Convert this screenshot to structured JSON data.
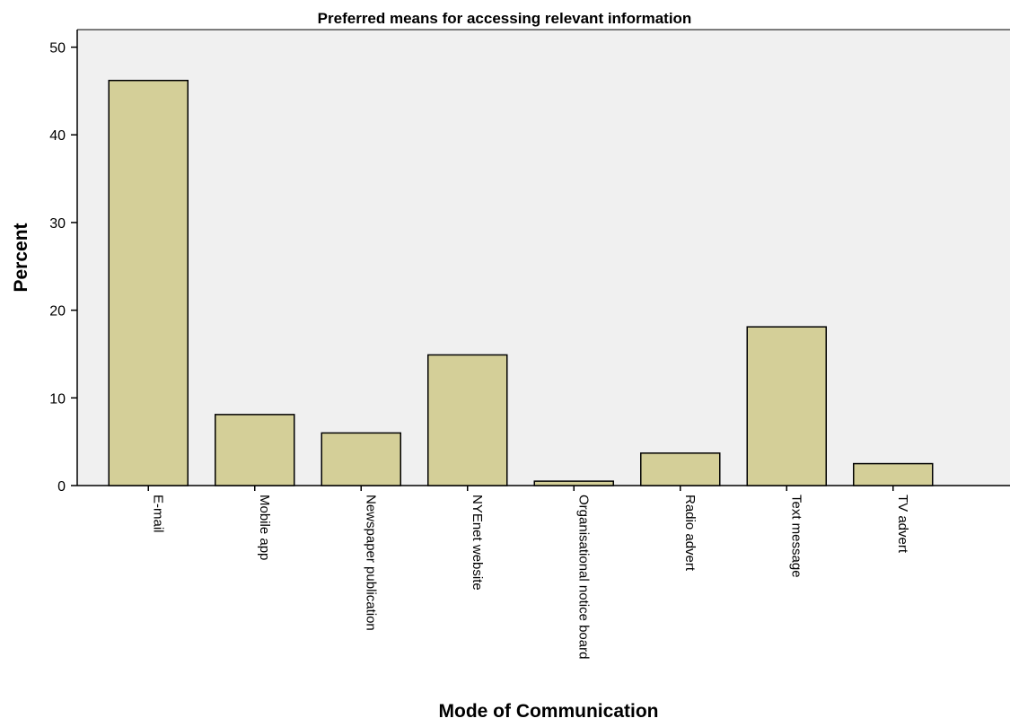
{
  "chart_data": {
    "type": "bar",
    "title": "Preferred means for accessing relevant information",
    "xlabel": "Mode of Communication",
    "ylabel": "Percent",
    "ylim": [
      0,
      52
    ],
    "yticks": [
      0,
      10,
      20,
      30,
      40,
      50
    ],
    "categories": [
      "E-mail",
      "Mobile app",
      "Newspaper publication",
      "NYEnet website",
      "Organisational notice board",
      "Radio advert",
      "Text message",
      "TV advert"
    ],
    "values": [
      46.2,
      8.1,
      6.0,
      14.9,
      0.5,
      3.7,
      18.1,
      2.5
    ],
    "grid": false,
    "legend": "none",
    "colors": {
      "bar_fill": "#d4cf98",
      "bar_stroke": "#000000",
      "plot_background": "#f0f0f0",
      "axis": "#000000"
    }
  }
}
